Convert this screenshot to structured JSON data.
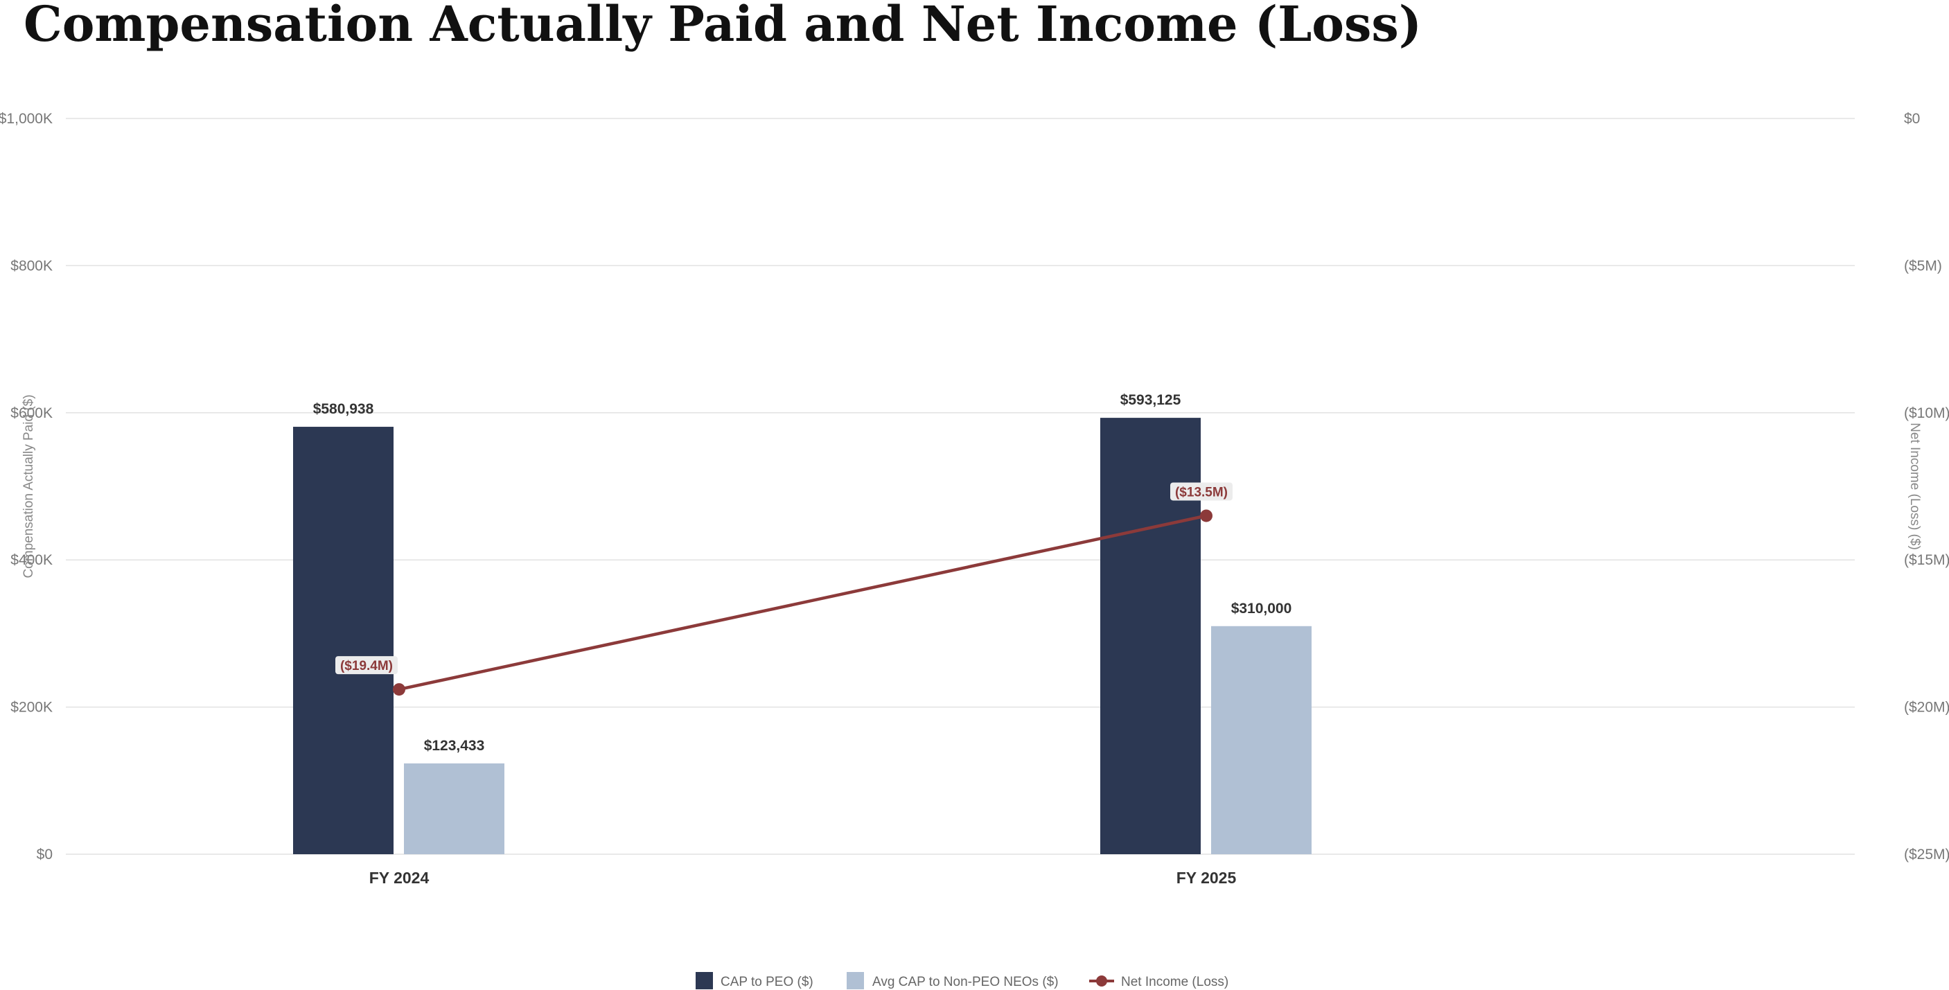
{
  "title": "Compensation Actually Paid and Net Income (Loss)",
  "colors": {
    "cap_peo": "#2c3853",
    "avg_cap": "#b0c0d4",
    "net_income": "#8c3a3a",
    "grid": "#e2e2e2",
    "label_bg": "#ececec"
  },
  "chart_data": {
    "type": "bar",
    "categories": [
      "FY 2024",
      "FY 2025"
    ],
    "series": [
      {
        "name": "CAP to PEO ($)",
        "type": "bar",
        "axis": "left",
        "values": [
          580938,
          593125
        ],
        "labels": [
          "$580,938",
          "$593,125"
        ]
      },
      {
        "name": "Avg CAP to Non-PEO NEOs ($)",
        "type": "bar",
        "axis": "left",
        "values": [
          123433,
          310000
        ],
        "labels": [
          "$123,433",
          "$310,000"
        ]
      },
      {
        "name": "Net Income (Loss)",
        "type": "line",
        "axis": "right",
        "values": [
          -19400000,
          -13500000
        ],
        "labels": [
          "($19.4M)",
          "($13.5M)"
        ]
      }
    ],
    "y_left": {
      "label": "Compensation Actually Paid ($)",
      "range": [
        0,
        1000000
      ],
      "ticks": [
        {
          "value": 0,
          "label": "$0"
        },
        {
          "value": 200000,
          "label": "$200K"
        },
        {
          "value": 400000,
          "label": "$400K"
        },
        {
          "value": 600000,
          "label": "$600K"
        },
        {
          "value": 800000,
          "label": "$800K"
        },
        {
          "value": 1000000,
          "label": "$1,000K"
        }
      ]
    },
    "y_right": {
      "label": "Net Income (Loss) ($)",
      "range": [
        -25000000,
        0
      ],
      "ticks": [
        {
          "value": -25000000,
          "label": "($25M)"
        },
        {
          "value": -20000000,
          "label": "($20M)"
        },
        {
          "value": -15000000,
          "label": "($15M)"
        },
        {
          "value": -10000000,
          "label": "($10M)"
        },
        {
          "value": -5000000,
          "label": "($5M)"
        },
        {
          "value": 0,
          "label": "$0"
        }
      ]
    },
    "grid": true,
    "legend_position": "bottom-center"
  }
}
